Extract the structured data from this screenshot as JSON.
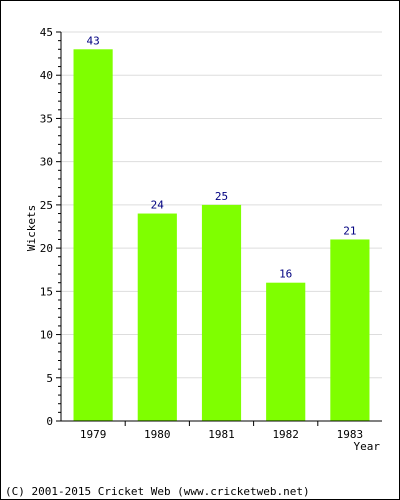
{
  "chart_data": {
    "type": "bar",
    "categories": [
      "1979",
      "1980",
      "1981",
      "1982",
      "1983"
    ],
    "values": [
      43,
      24,
      25,
      16,
      21
    ],
    "data_labels": [
      "43",
      "24",
      "25",
      "16",
      "21"
    ],
    "title": "",
    "xlabel": "Year",
    "ylabel": "Wickets",
    "ylim": [
      0,
      45
    ],
    "yticks": [
      "0",
      "5",
      "10",
      "15",
      "20",
      "25",
      "30",
      "35",
      "40",
      "45"
    ],
    "grid": true,
    "bar_color": "#7fff00",
    "label_color": "#000080",
    "grid_color": "#dddddd"
  },
  "footer": {
    "copyright": "(C) 2001-2015 Cricket Web (www.cricketweb.net)"
  }
}
